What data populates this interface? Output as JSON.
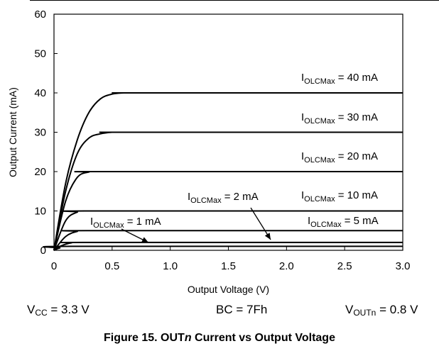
{
  "chart_data": {
    "type": "line",
    "title": "",
    "xlabel": "Output Voltage (V)",
    "ylabel": "Output Current (mA)",
    "xlim": [
      0,
      3.0
    ],
    "ylim": [
      0,
      60
    ],
    "x_ticks": [
      "0",
      "0.5",
      "1.0",
      "1.5",
      "2.0",
      "2.5",
      "3.0"
    ],
    "y_ticks": [
      "0",
      "10",
      "20",
      "30",
      "40",
      "50",
      "60"
    ],
    "grid": false,
    "series": [
      {
        "label_main": "I",
        "label_sub": "OLCMax",
        "label_rest": " = 40 mA",
        "x": [
          0,
          0.1,
          0.2,
          0.3,
          0.4,
          0.5,
          0.6,
          0.7,
          3.0
        ],
        "y": [
          0,
          17,
          28,
          35,
          38.5,
          39.7,
          40,
          40,
          40
        ]
      },
      {
        "label_main": "I",
        "label_sub": "OLCMax",
        "label_rest": " = 30 mA",
        "x": [
          0,
          0.1,
          0.2,
          0.3,
          0.4,
          0.5,
          0.6,
          3.0
        ],
        "y": [
          0,
          15,
          24.5,
          28.5,
          29.6,
          30,
          30,
          30
        ]
      },
      {
        "label_main": "I",
        "label_sub": "OLCMax",
        "label_rest": " = 20 mA",
        "x": [
          0,
          0.1,
          0.2,
          0.3,
          0.4,
          3.0
        ],
        "y": [
          0,
          12.5,
          18.5,
          19.9,
          20,
          20
        ]
      },
      {
        "label_main": "I",
        "label_sub": "OLCMax",
        "label_rest": " = 10 mA",
        "x": [
          0,
          0.1,
          0.2,
          0.3,
          3.0
        ],
        "y": [
          0,
          7.5,
          9.7,
          10,
          10
        ]
      },
      {
        "label_main": "I",
        "label_sub": "OLCMax",
        "label_rest": " = 5 mA",
        "x": [
          0,
          0.1,
          0.2,
          0.3,
          3.0
        ],
        "y": [
          0,
          3.5,
          4.8,
          5,
          5
        ]
      },
      {
        "label_main": "I",
        "label_sub": "OLCMax",
        "label_rest": " = 2 mA",
        "x": [
          0,
          0.05,
          0.15,
          0.3,
          3.0
        ],
        "y": [
          0,
          1,
          1.9,
          2,
          2
        ]
      },
      {
        "label_main": "I",
        "label_sub": "OLCMax",
        "label_rest": " = 1 mA",
        "x": [
          0,
          0.05,
          0.15,
          3.0
        ],
        "y": [
          0,
          0.6,
          1,
          1
        ]
      }
    ]
  },
  "conditions": {
    "vcc": {
      "main": "V",
      "sub": "CC",
      "rest": " = 3.3 V"
    },
    "bc": "BC = 7Fh",
    "vout": {
      "main": "V",
      "sub": "OUTn",
      "rest": " = 0.8 V"
    }
  },
  "caption": {
    "prefix": "Figure 15. OUT",
    "italic": "n",
    "suffix": " Current vs Output Voltage"
  }
}
